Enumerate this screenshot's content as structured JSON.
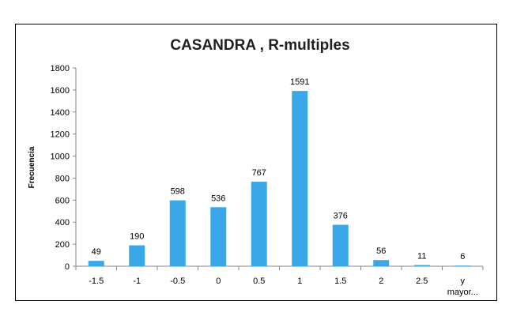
{
  "chart_data": {
    "type": "bar",
    "title": "CASANDRA , R-multiples",
    "xlabel": "",
    "ylabel": "Frecuencia",
    "categories": [
      "-1.5",
      "-1",
      "-0.5",
      "0",
      "0.5",
      "1",
      "1.5",
      "2",
      "2.5",
      "y mayor..."
    ],
    "values": [
      49,
      190,
      598,
      536,
      767,
      1591,
      376,
      56,
      11,
      6
    ],
    "ylim": [
      0,
      1800
    ],
    "yticks": [
      0,
      200,
      400,
      600,
      800,
      1000,
      1200,
      1400,
      1600,
      1800
    ],
    "grid": false,
    "legend": "none",
    "bar_color": "#3aa8e8"
  }
}
